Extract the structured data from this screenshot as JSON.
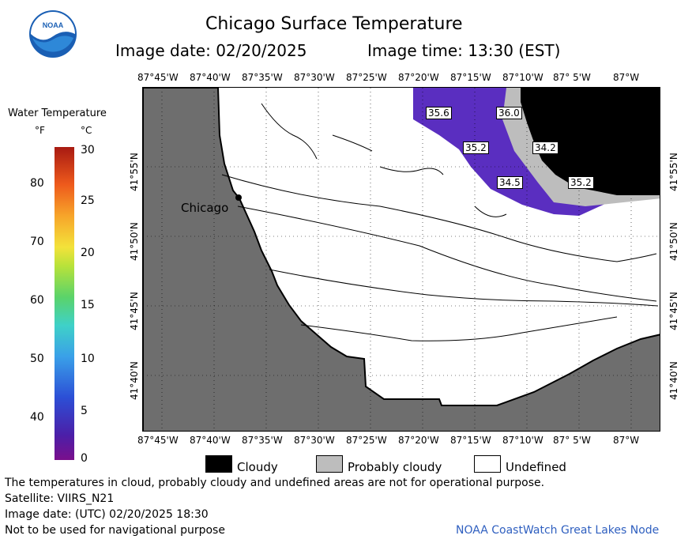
{
  "logo": {
    "text": "NOAA",
    "icon": "noaa-logo"
  },
  "header": {
    "title": "Chicago Surface Temperature",
    "image_date": "Image date: 02/20/2025",
    "image_time": "Image time: 13:30 (EST)"
  },
  "colorbar": {
    "title": "Water Temperature",
    "unit_f": "°F",
    "unit_c": "°C",
    "f_ticks": [
      "80",
      "70",
      "60",
      "50",
      "40"
    ],
    "c_ticks": [
      "30",
      "25",
      "20",
      "15",
      "10",
      "5",
      "0"
    ]
  },
  "map": {
    "lon_labels": [
      "87°45'W",
      "87°40'W",
      "87°35'W",
      "87°30'W",
      "87°25'W",
      "87°20'W",
      "87°15'W",
      "87°10'W",
      "87° 5'W",
      "87°W"
    ],
    "lat_labels": [
      "41°55'N",
      "41°50'N",
      "41°45'N",
      "41°40'N"
    ],
    "city_label": "Chicago",
    "temp_labels": [
      "35.6",
      "36.0",
      "35.2",
      "34.2",
      "34.5",
      "35.2"
    ],
    "colors": {
      "land": "#6e6e6e",
      "cloud": "#000000",
      "water_purple": "#5a2ec0",
      "probably_cloudy": "#bdbdbd"
    }
  },
  "legend": {
    "cloudy": "Cloudy",
    "probably_cloudy": "Probably cloudy",
    "undefined": "Undefined"
  },
  "footer": {
    "disclaimer": "The temperatures in cloud, probably cloudy and undefined areas are not for operational purpose.",
    "satellite": "Satellite: VIIRS_N21",
    "utc_date": "Image date: (UTC) 02/20/2025  18:30",
    "nav_warning": "Not to be used for navigational purpose",
    "credit": "NOAA CoastWatch Great Lakes Node"
  }
}
